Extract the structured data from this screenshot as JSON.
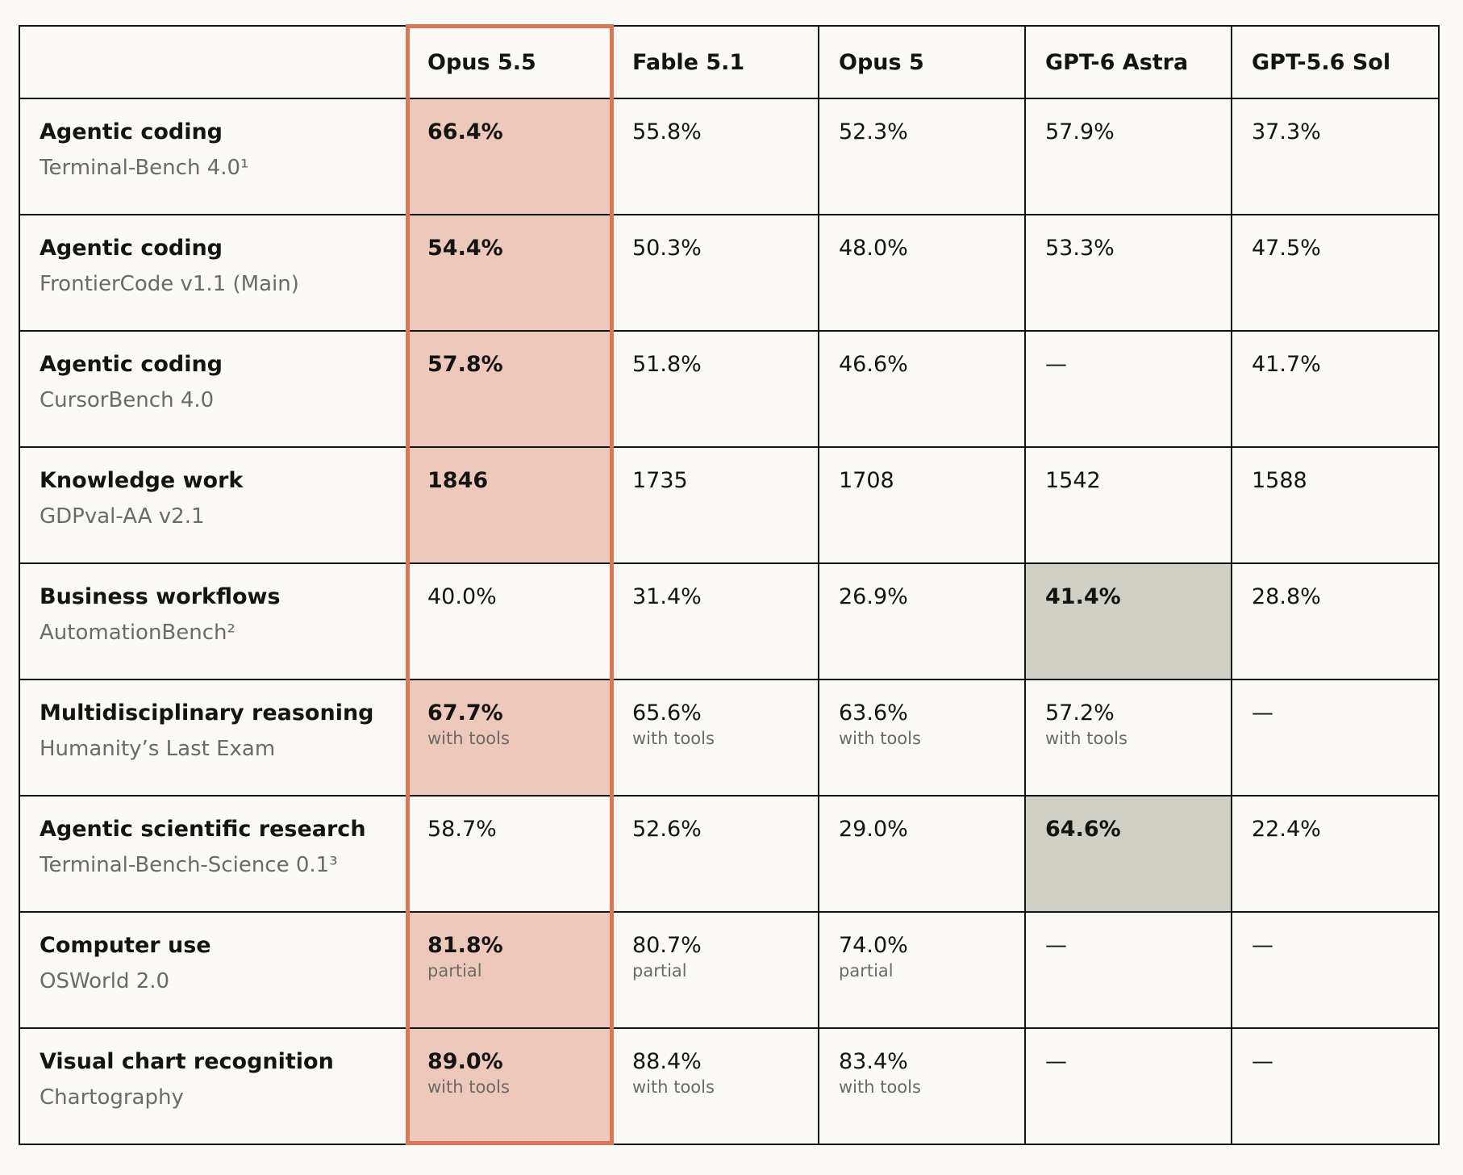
{
  "chart_data": {
    "type": "table",
    "columns": [
      "Opus 5.5",
      "Fable 5.1",
      "Opus 5",
      "GPT-6 Astra",
      "GPT-5.6 Sol"
    ],
    "highlighted_column": "Opus 5.5",
    "colors": {
      "highlight_border": "#d97757",
      "highlight_fill": "#eec9bb",
      "competitor_best_fill": "#d1d0c6",
      "background": "#faf9f5",
      "text": "#141413",
      "muted_text": "#6a6a67"
    },
    "rows": [
      {
        "category": "Agentic coding",
        "benchmark": "Terminal-Bench 4.0¹",
        "best": "Opus 5.5",
        "cells": [
          {
            "value": "66.4%"
          },
          {
            "value": "55.8%"
          },
          {
            "value": "52.3%"
          },
          {
            "value": "57.9%"
          },
          {
            "value": "37.3%"
          }
        ]
      },
      {
        "category": "Agentic coding",
        "benchmark": "FrontierCode v1.1 (Main)",
        "best": "Opus 5.5",
        "cells": [
          {
            "value": "54.4%"
          },
          {
            "value": "50.3%"
          },
          {
            "value": "48.0%"
          },
          {
            "value": "53.3%"
          },
          {
            "value": "47.5%"
          }
        ]
      },
      {
        "category": "Agentic coding",
        "benchmark": "CursorBench 4.0",
        "best": "Opus 5.5",
        "cells": [
          {
            "value": "57.8%"
          },
          {
            "value": "51.8%"
          },
          {
            "value": "46.6%"
          },
          {
            "value": "—"
          },
          {
            "value": "41.7%"
          }
        ]
      },
      {
        "category": "Knowledge work",
        "benchmark": "GDPval-AA v2.1",
        "best": "Opus 5.5",
        "cells": [
          {
            "value": "1846"
          },
          {
            "value": "1735"
          },
          {
            "value": "1708"
          },
          {
            "value": "1542"
          },
          {
            "value": "1588"
          }
        ]
      },
      {
        "category": "Business workflows",
        "benchmark": "AutomationBench²",
        "best": "GPT-6 Astra",
        "cells": [
          {
            "value": "40.0%"
          },
          {
            "value": "31.4%"
          },
          {
            "value": "26.9%"
          },
          {
            "value": "41.4%"
          },
          {
            "value": "28.8%"
          }
        ]
      },
      {
        "category": "Multidisciplinary reasoning",
        "benchmark": "Humanity’s Last Exam",
        "best": "Opus 5.5",
        "cells": [
          {
            "value": "67.7%",
            "note": "with tools"
          },
          {
            "value": "65.6%",
            "note": "with tools"
          },
          {
            "value": "63.6%",
            "note": "with tools"
          },
          {
            "value": "57.2%",
            "note": "with tools"
          },
          {
            "value": "—"
          }
        ]
      },
      {
        "category": "Agentic scientific research",
        "benchmark": "Terminal-Bench-Science 0.1³",
        "best": "GPT-6 Astra",
        "cells": [
          {
            "value": "58.7%"
          },
          {
            "value": "52.6%"
          },
          {
            "value": "29.0%"
          },
          {
            "value": "64.6%"
          },
          {
            "value": "22.4%"
          }
        ]
      },
      {
        "category": "Computer use",
        "benchmark": "OSWorld 2.0",
        "best": "Opus 5.5",
        "cells": [
          {
            "value": "81.8%",
            "note": "partial"
          },
          {
            "value": "80.7%",
            "note": "partial"
          },
          {
            "value": "74.0%",
            "note": "partial"
          },
          {
            "value": "—"
          },
          {
            "value": "—"
          }
        ]
      },
      {
        "category": "Visual chart recognition",
        "benchmark": "Chartography",
        "best": "Opus 5.5",
        "cells": [
          {
            "value": "89.0%",
            "note": "with tools"
          },
          {
            "value": "88.4%",
            "note": "with tools"
          },
          {
            "value": "83.4%",
            "note": "with tools"
          },
          {
            "value": "—"
          },
          {
            "value": "—"
          }
        ]
      }
    ]
  }
}
